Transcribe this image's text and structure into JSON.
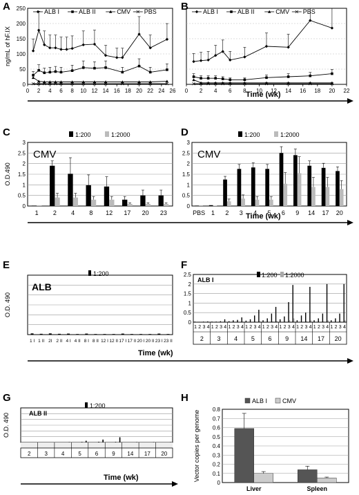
{
  "panels": {
    "A": {
      "letter": "A"
    },
    "B": {
      "letter": "B"
    },
    "C": {
      "letter": "C"
    },
    "D": {
      "letter": "D"
    },
    "E": {
      "letter": "E"
    },
    "F": {
      "letter": "F"
    },
    "G": {
      "letter": "G"
    },
    "H": {
      "letter": "H"
    }
  },
  "chart_data": [
    {
      "id": "A",
      "type": "line",
      "ylabel": "ng/mL of hF.IX",
      "xlabel": "Time (wk)",
      "xlim": [
        0,
        26
      ],
      "ylim": [
        0,
        250
      ],
      "xticks": [
        0,
        2,
        4,
        6,
        8,
        10,
        12,
        14,
        16,
        18,
        20,
        22,
        24,
        26
      ],
      "yticks": [
        0,
        50,
        100,
        150,
        200,
        250
      ],
      "legend": [
        "ALB I",
        "ALB II",
        "CMV",
        "PBS"
      ],
      "series": [
        {
          "name": "ALB I",
          "x": [
            1,
            2,
            3,
            4,
            5,
            6,
            7,
            8,
            10,
            12,
            14,
            16,
            17,
            20,
            22,
            25
          ],
          "y": [
            110,
            178,
            130,
            120,
            120,
            115,
            115,
            118,
            130,
            132,
            95,
            88,
            88,
            165,
            120,
            148
          ]
        },
        {
          "name": "ALB II",
          "x": [
            1,
            2,
            3,
            4,
            5,
            6,
            8,
            10,
            12,
            14,
            17,
            20,
            22,
            25
          ],
          "y": [
            30,
            46,
            38,
            40,
            42,
            40,
            45,
            55,
            53,
            55,
            40,
            60,
            40,
            48
          ]
        },
        {
          "name": "CMV",
          "x": [
            1,
            2,
            3,
            4,
            5,
            6,
            8,
            10,
            12,
            14,
            17,
            20,
            22,
            25
          ],
          "y": [
            22,
            10,
            8,
            8,
            8,
            8,
            8,
            8,
            8,
            8,
            8,
            8,
            8,
            10
          ]
        },
        {
          "name": "PBS",
          "x": [
            1,
            2,
            3,
            4,
            5,
            6,
            8,
            10,
            12,
            14,
            17,
            20,
            22,
            25
          ],
          "y": [
            2,
            2,
            2,
            2,
            2,
            2,
            2,
            2,
            2,
            2,
            2,
            2,
            2,
            2
          ]
        }
      ]
    },
    {
      "id": "B",
      "type": "line",
      "xlim": [
        0,
        22
      ],
      "ylim": [
        0,
        250
      ],
      "xticks": [
        0,
        2,
        4,
        6,
        8,
        10,
        12,
        14,
        16,
        18,
        20,
        22
      ],
      "legend": [
        "ALB I",
        "ALB II",
        "CMV",
        "PBS"
      ],
      "series": [
        {
          "name": "ALB I",
          "x": [
            1,
            2,
            3,
            4,
            5,
            6,
            8,
            11,
            14,
            17,
            20
          ],
          "y": [
            75,
            78,
            80,
            95,
            108,
            80,
            90,
            125,
            122,
            210,
            185
          ]
        },
        {
          "name": "ALB II",
          "x": [
            1,
            2,
            3,
            4,
            5,
            6,
            8,
            11,
            14,
            17,
            20
          ],
          "y": [
            25,
            20,
            20,
            20,
            18,
            15,
            15,
            22,
            25,
            28,
            35
          ]
        },
        {
          "name": "CMV",
          "x": [
            1,
            2,
            3,
            4,
            5,
            6,
            8,
            11,
            14,
            17,
            20
          ],
          "y": [
            15,
            5,
            5,
            5,
            5,
            5,
            5,
            5,
            5,
            5,
            5
          ]
        },
        {
          "name": "PBS",
          "x": [
            1,
            2,
            3,
            4,
            5,
            6,
            8,
            11,
            14,
            17,
            20
          ],
          "y": [
            2,
            2,
            2,
            2,
            2,
            2,
            2,
            2,
            2,
            2,
            2
          ]
        }
      ]
    },
    {
      "id": "C",
      "type": "bar",
      "annotation": "CMV",
      "ylabel": "O.D.490",
      "xlabel": "Time (wk)",
      "ylim": [
        0,
        3
      ],
      "yticks": [
        0,
        0.5,
        1,
        1.5,
        2,
        2.5,
        3
      ],
      "categories": [
        "1",
        "2",
        "4",
        "8",
        "12",
        "17",
        "20",
        "23"
      ],
      "series": [
        {
          "name": "1:200",
          "values": [
            0.02,
            1.9,
            1.52,
            0.98,
            0.92,
            0.3,
            0.5,
            0.5
          ]
        },
        {
          "name": "1:2000",
          "values": [
            0.01,
            0.4,
            0.4,
            0.3,
            0.3,
            0.1,
            0.1,
            0.1
          ]
        }
      ]
    },
    {
      "id": "D",
      "type": "bar",
      "annotation": "CMV",
      "xlabel": "Time (wk)",
      "ylim": [
        0,
        3
      ],
      "yticks": [
        0,
        0.5,
        1,
        1.5,
        2,
        2.5,
        3
      ],
      "categories": [
        "PBS",
        "1",
        "2",
        "3",
        "4",
        "5",
        "6",
        "9",
        "14",
        "17",
        "20"
      ],
      "series": [
        {
          "name": "1:200",
          "values": [
            0.02,
            0.04,
            1.25,
            1.75,
            1.82,
            1.75,
            2.5,
            2.4,
            1.9,
            1.8,
            1.65
          ]
        },
        {
          "name": "1:2000",
          "values": [
            0.01,
            0.02,
            0.22,
            0.35,
            0.3,
            0.3,
            1.05,
            1.55,
            0.9,
            0.9,
            0.8
          ]
        }
      ]
    },
    {
      "id": "E",
      "type": "bar",
      "annotation": "ALB",
      "ylabel": "O.D. 490",
      "xlabel": "Time (wk)",
      "ylim": [
        0,
        3
      ],
      "yticks": [
        0,
        0.5,
        1,
        1.5,
        2,
        2.5,
        3
      ],
      "categories": [
        "1 I",
        "1 II",
        "2I",
        "2 II",
        "4 I",
        "4 II",
        "8 I",
        "8 II",
        "12 I",
        "12 II",
        "17 I",
        "17 II",
        "20 I",
        "20 II",
        "23 I",
        "23 II"
      ],
      "series": [
        {
          "name": "1:200",
          "values": [
            0.06,
            0.04,
            0.06,
            0.04,
            0.05,
            0.03,
            0.05,
            0.03,
            0.03,
            0.03,
            0.05,
            0.03,
            0.03,
            0.03,
            0.05,
            0.03
          ]
        }
      ]
    },
    {
      "id": "F",
      "type": "bar",
      "annotation": "ALB I",
      "xlabel": "Time (wk)",
      "ylim": [
        0,
        2.5
      ],
      "yticks": [
        0,
        0.5,
        1,
        1.5,
        2,
        2.5
      ],
      "categories": [
        "1",
        "2",
        "3",
        "4",
        "1",
        "2",
        "3",
        "4",
        "1",
        "2",
        "3",
        "4",
        "1",
        "2",
        "3",
        "4",
        "1",
        "2",
        "3",
        "4",
        "1",
        "2",
        "3",
        "4",
        "1",
        "2",
        "3",
        "4",
        "1",
        "2",
        "3",
        "4",
        "1",
        "2",
        "3",
        "4"
      ],
      "groups": [
        "2",
        "3",
        "4",
        "5",
        "6",
        "9",
        "14",
        "17",
        "20"
      ],
      "series": [
        {
          "name": "1:200",
          "values": [
            0.03,
            0.02,
            0.03,
            0.04,
            0.03,
            0.03,
            0.05,
            0.15,
            0.05,
            0.1,
            0.12,
            0.25,
            0.08,
            0.15,
            0.35,
            0.65,
            0.1,
            0.2,
            0.45,
            0.8,
            0.15,
            0.3,
            1.05,
            1.95,
            0.1,
            0.35,
            0.5,
            1.85,
            0.1,
            0.2,
            0.45,
            2.0,
            0.1,
            0.2,
            0.45,
            2.0
          ]
        },
        {
          "name": "1:2000",
          "values": [
            0.01,
            0.01,
            0.01,
            0.01,
            0.01,
            0.01,
            0.01,
            0.02,
            0.01,
            0.01,
            0.02,
            0.03,
            0.01,
            0.02,
            0.03,
            0.05,
            0.01,
            0.02,
            0.04,
            0.06,
            0.01,
            0.03,
            0.1,
            0.2,
            0.01,
            0.02,
            0.05,
            0.1,
            0.01,
            0.02,
            0.04,
            0.1,
            0.01,
            0.02,
            0.04,
            0.1
          ]
        }
      ]
    },
    {
      "id": "G",
      "type": "bar",
      "annotation": "ALB II",
      "ylabel": "O.D. 490",
      "xlabel": "Time (wk)",
      "ylim": [
        0,
        3
      ],
      "yticks": [
        0,
        0.5,
        1,
        1.5,
        2,
        2.5,
        3
      ],
      "groups": [
        "2",
        "3",
        "4",
        "5",
        "6",
        "9",
        "14",
        "17",
        "20"
      ],
      "series": [
        {
          "name": "1:200",
          "values": [
            0.02,
            0.02,
            0.02,
            0.03,
            0.02,
            0.02,
            0.02,
            0.03,
            0.02,
            0.02,
            0.03,
            0.04,
            0.02,
            0.03,
            0.05,
            0.15,
            0.02,
            0.03,
            0.06,
            0.25,
            0.02,
            0.03,
            0.05,
            0.45,
            0.02,
            0.03,
            0.03,
            0.04,
            0.02,
            0.03,
            0.03,
            0.04,
            0.02,
            0.03,
            0.03,
            0.04
          ]
        }
      ]
    },
    {
      "id": "H",
      "type": "bar",
      "ylabel": "Vector copies per genome",
      "ylim": [
        0,
        0.8
      ],
      "yticks": [
        0,
        0.1,
        0.2,
        0.3,
        0.4,
        0.5,
        0.6,
        0.7,
        0.8
      ],
      "categories": [
        "Liver",
        "Spleen"
      ],
      "series": [
        {
          "name": "ALB I",
          "values": [
            0.59,
            0.14
          ],
          "color": "#555555"
        },
        {
          "name": "CMV",
          "values": [
            0.1,
            0.05
          ],
          "color": "#cccccc"
        }
      ]
    }
  ]
}
